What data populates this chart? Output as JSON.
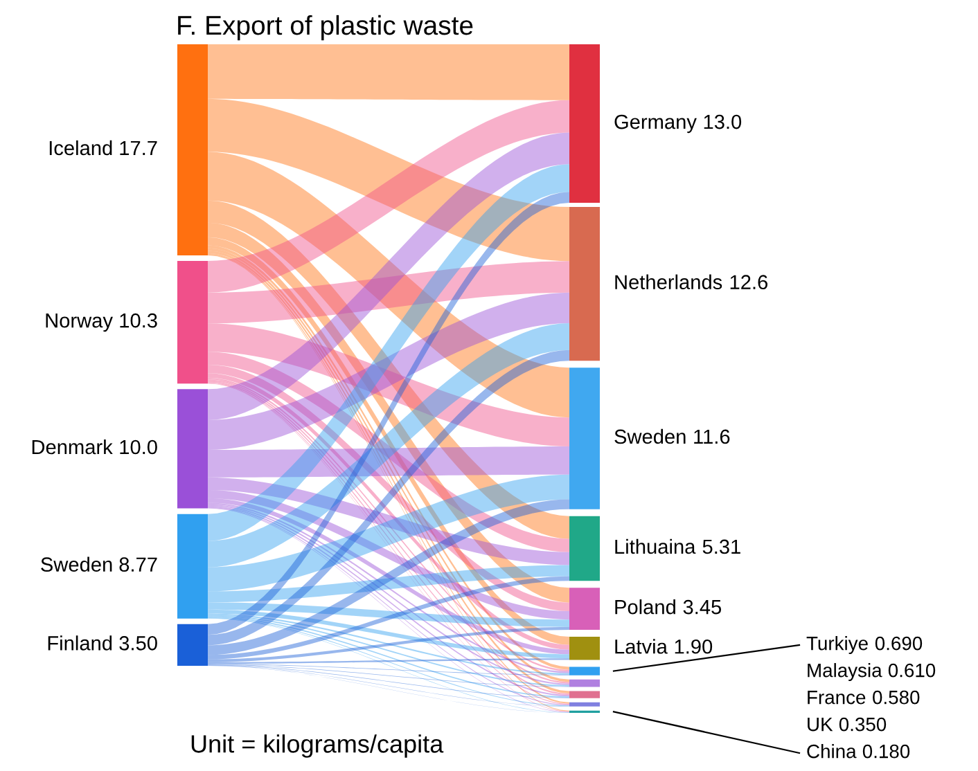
{
  "chart_data": [
    {
      "type": "other",
      "title": "F. Export of plastic waste",
      "categories": [
        "Iceland",
        "Norway",
        "Denmark",
        "Sweden",
        "Finland"
      ],
      "values": [
        17.7,
        10.3,
        10.0,
        8.77,
        3.5
      ],
      "value_labels": [
        "17.7",
        "10.3",
        "10.0",
        "8.77",
        "3.50"
      ],
      "colors": [
        "#ff7010",
        "#f0508a",
        "#9a50d8",
        "#30a0f0",
        "#1a60d8"
      ],
      "annotations": [
        "Unit = kilograms/capita"
      ]
    },
    {
      "type": "other",
      "categories": [
        "Germany",
        "Netherlands",
        "Sweden",
        "Lithuaina",
        "Poland",
        "Latvia",
        "Turkiye",
        "Malaysia",
        "France",
        "UK",
        "China"
      ],
      "values": [
        13.0,
        12.6,
        11.6,
        5.31,
        3.45,
        1.9,
        0.69,
        0.61,
        0.58,
        0.35,
        0.18
      ],
      "value_labels": [
        "13.0",
        "12.6",
        "11.6",
        "5.31",
        "3.45",
        "1.90",
        "0.690",
        "0.610",
        "0.580",
        "0.350",
        "0.180"
      ],
      "colors": [
        "#e03040",
        "#d86a50",
        "#40a8f0",
        "#20a888",
        "#d860b8",
        "#a09010",
        "#30a0f0",
        "#b080e0",
        "#e07090",
        "#8080e0",
        "#20a0a0"
      ]
    }
  ]
}
